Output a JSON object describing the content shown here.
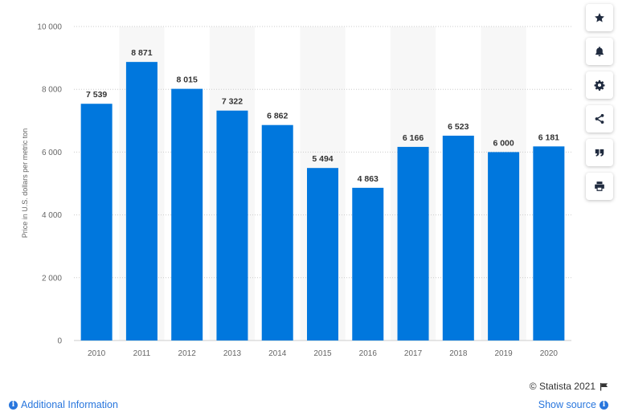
{
  "chart_data": {
    "type": "bar",
    "categories": [
      "2010",
      "2011",
      "2012",
      "2013",
      "2014",
      "2015",
      "2016",
      "2017",
      "2018",
      "2019",
      "2020"
    ],
    "values": [
      7539,
      8871,
      8015,
      7322,
      6862,
      5494,
      4863,
      6166,
      6523,
      6000,
      6181
    ],
    "value_labels": [
      "7 539",
      "8 871",
      "8 015",
      "7 322",
      "6 862",
      "5 494",
      "4 863",
      "6 166",
      "6 523",
      "6 000",
      "6 181"
    ],
    "ylabel": "Price in U.S. dollars per metric ton",
    "ylim": [
      0,
      10000
    ],
    "yticks": [
      0,
      2000,
      4000,
      6000,
      8000,
      10000
    ],
    "ytick_labels": [
      "0",
      "2 000",
      "4 000",
      "6 000",
      "8 000",
      "10 000"
    ],
    "bar_color": "#0077dd",
    "alt_band_color": "#f7f7f7",
    "grid": true,
    "gridline_color": "#cccccc"
  },
  "toolbar": {
    "items": [
      {
        "icon": "star-icon"
      },
      {
        "icon": "bell-icon"
      },
      {
        "icon": "gear-icon"
      },
      {
        "icon": "share-icon"
      },
      {
        "icon": "quote-icon"
      },
      {
        "icon": "print-icon"
      }
    ]
  },
  "footer": {
    "credits": "© Statista 2021",
    "additional_info": "Additional Information",
    "show_source": "Show source"
  },
  "colors": {
    "link": "#2876dd",
    "toolbar_icon": "#202b3f"
  }
}
